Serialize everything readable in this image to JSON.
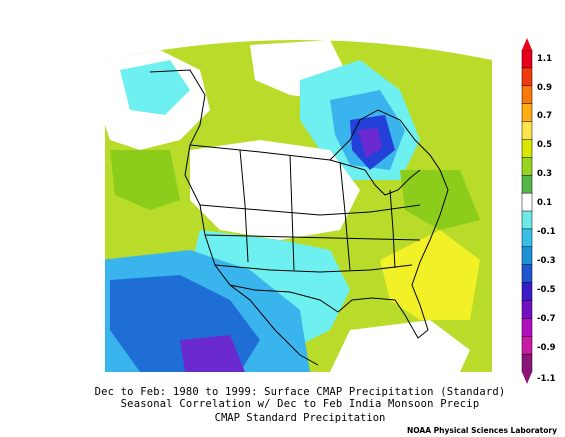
{
  "map": {
    "caption_line1": "Dec to Feb: 1980 to 1999: Surface CMAP Precipitation (Standard)",
    "caption_line2": "Seasonal Correlation w/ Dec to Feb India Monsoon Precip",
    "caption_line3": "CMAP Standard Precipitation",
    "credit": "NOAA Physical Sciences Laboratory"
  },
  "colorbar": {
    "labels": [
      "1.1",
      "0.9",
      "0.7",
      "0.5",
      "0.3",
      "0.1",
      "-0.1",
      "-0.3",
      "-0.5",
      "-0.7",
      "-0.9",
      "-1.1"
    ],
    "colors": [
      "#e8001c",
      "#f03c0c",
      "#f77a0a",
      "#fcae14",
      "#ffe34a",
      "#d8e600",
      "#9bd41f",
      "#52b848",
      "#ffffff",
      "#6fe8e8",
      "#36c0e8",
      "#1e90d6",
      "#1e55d0",
      "#3a1cc8",
      "#7010c0",
      "#b010c0",
      "#c81aa6",
      "#8a1478"
    ]
  },
  "palette": {
    "green_light": "#b9dc2a",
    "green": "#8ccc1a",
    "yellow": "#f2f026",
    "white": "#ffffff",
    "cyan": "#6ff0f0",
    "sky": "#3ab4ec",
    "blue": "#1e6ed6",
    "deep_blue": "#2340d8",
    "violet": "#6a2ad0",
    "border": "#000000"
  }
}
